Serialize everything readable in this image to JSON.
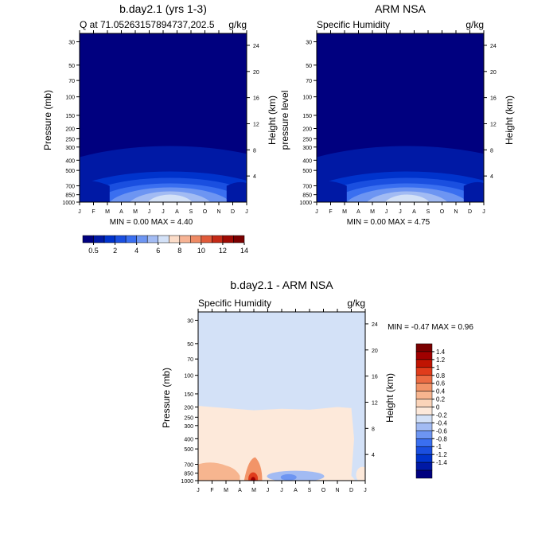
{
  "months": [
    "J",
    "F",
    "M",
    "A",
    "M",
    "J",
    "J",
    "A",
    "S",
    "O",
    "N",
    "D",
    "J"
  ],
  "pressure_ticks": [
    30,
    50,
    70,
    100,
    150,
    200,
    250,
    300,
    400,
    500,
    700,
    850,
    1000
  ],
  "height_ticks": [
    4,
    8,
    12,
    16,
    20,
    24
  ],
  "colors": {
    "abs_levels": [
      "#00007f",
      "#0019a5",
      "#0033cc",
      "#1a4fe0",
      "#3a6ff0",
      "#6d95f2",
      "#a2bbf3",
      "#d3e1f7",
      "#fbdcc8",
      "#f6b394",
      "#ee8a64",
      "#e05a3a",
      "#c42a17",
      "#9f0a04",
      "#7a0000"
    ],
    "diff_levels": [
      "#00007f",
      "#0019a5",
      "#0033cc",
      "#1a4fe0",
      "#3a6ff0",
      "#6d95f2",
      "#a2bbf3",
      "#d3e1f7",
      "#fde9da",
      "#fbd4b9",
      "#f7b58f",
      "#f29468",
      "#ec6c43",
      "#e03c1b",
      "#c01402",
      "#a00000",
      "#7a0000"
    ]
  },
  "chart_data": [
    {
      "type": "heatmap",
      "title": "b.day2.1 (yrs 1-3)",
      "subtitle_left": "Q at 71.05263157894737,202.5",
      "subtitle_right": "g/kg",
      "ylabel": "Pressure (mb)",
      "ylabel_right": "Height (km)",
      "stats": "MIN =  0.00 MAX =  4.40",
      "min": 0.0,
      "max": 4.4
    },
    {
      "type": "heatmap",
      "title": "ARM NSA",
      "subtitle_left": "Specific Humidity",
      "subtitle_right": "g/kg",
      "ylabel": "pressure level",
      "ylabel_right": "Height (km)",
      "stats": "MIN =  0.00 MAX =  4.75",
      "min": 0.0,
      "max": 4.75
    },
    {
      "type": "heatmap",
      "title": "b.day2.1 - ARM NSA",
      "subtitle_left": "Specific Humidity",
      "subtitle_right": "g/kg",
      "ylabel": "Pressure (mb)",
      "ylabel_right": "Height (km)",
      "stats": "MIN =  -0.47 MAX =   0.96",
      "min": -0.47,
      "max": 0.96
    }
  ],
  "colorbar_abs": {
    "labels": [
      "0.5",
      "2",
      "4",
      "6",
      "8",
      "10",
      "12",
      "14"
    ]
  },
  "colorbar_diff": {
    "labels": [
      "1.4",
      "1.2",
      "1",
      "0.8",
      "0.6",
      "0.4",
      "0.2",
      "0",
      "-0.2",
      "-0.4",
      "-0.6",
      "-0.8",
      "-1",
      "-1.2",
      "-1.4"
    ]
  }
}
